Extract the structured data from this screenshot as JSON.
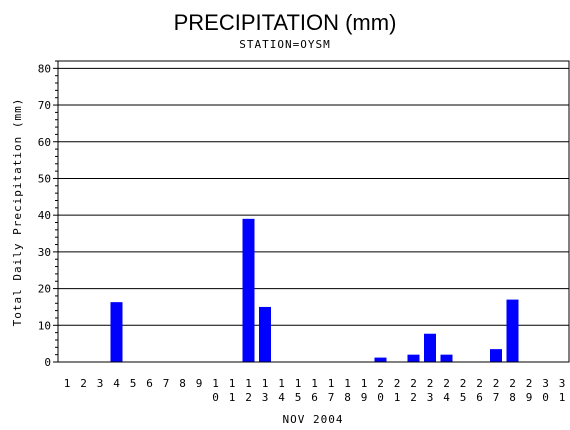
{
  "chart_data": {
    "type": "bar",
    "title": "PRECIPITATION (mm)",
    "subtitle": "STATION=OYSM",
    "xlabel": "NOV 2004",
    "ylabel": "Total Daily Precipitation (mm)",
    "ylim": [
      0,
      82
    ],
    "yticks": [
      0,
      10,
      20,
      30,
      40,
      50,
      60,
      70,
      80
    ],
    "grid": true,
    "bar_color": "#0000ff",
    "categories": [
      "1",
      "2",
      "3",
      "4",
      "5",
      "6",
      "7",
      "8",
      "9",
      "10",
      "11",
      "12",
      "13",
      "14",
      "15",
      "16",
      "17",
      "18",
      "19",
      "20",
      "21",
      "22",
      "23",
      "24",
      "25",
      "26",
      "27",
      "28",
      "29",
      "30",
      "31"
    ],
    "values": [
      0,
      0,
      0,
      16.3,
      0,
      0,
      0,
      0,
      0,
      0,
      0,
      39,
      15,
      0,
      0,
      0,
      0,
      0,
      0,
      1.2,
      0,
      2,
      7.7,
      2,
      0,
      0,
      3.5,
      17,
      0,
      0,
      0
    ]
  }
}
